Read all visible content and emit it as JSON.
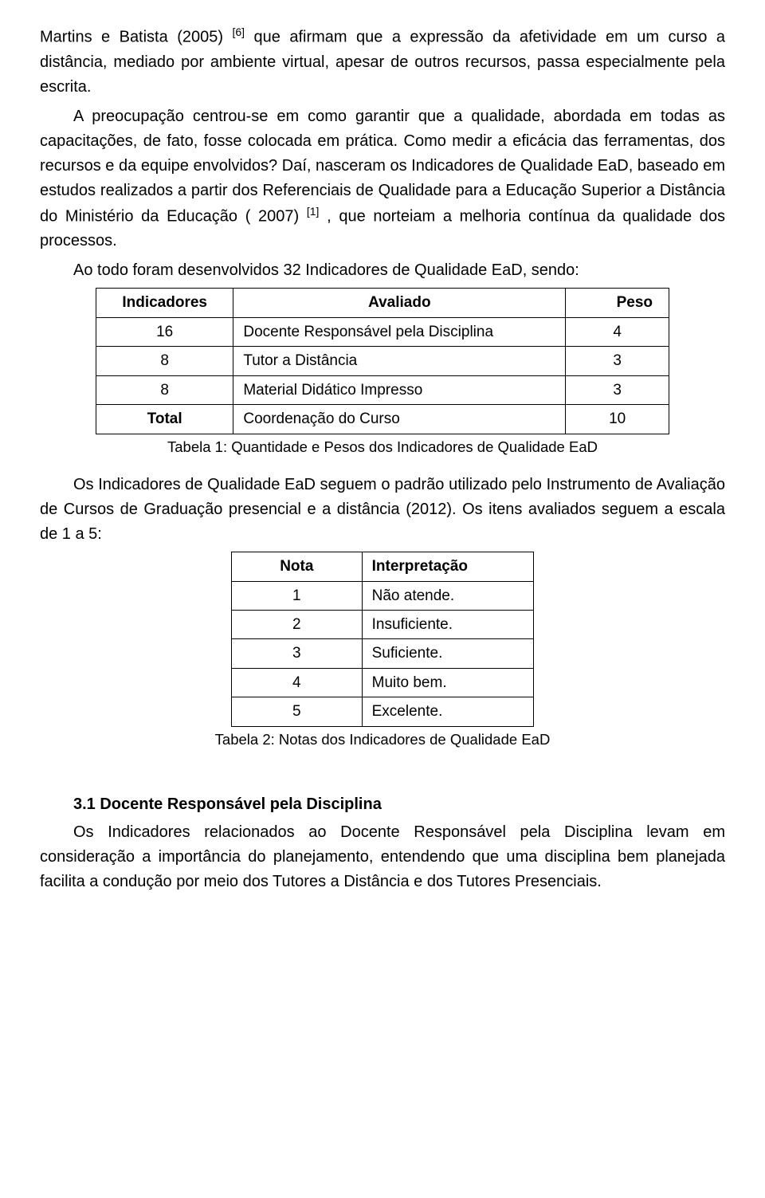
{
  "paragraphs": {
    "p1a": "Martins e Batista (2005) ",
    "p1sup": "[6]",
    "p1b": " que afirmam que a expressão da afetividade em um curso a distância, mediado por ambiente virtual, apesar de outros recursos, passa especialmente pela escrita.",
    "p2a": "A preocupação centrou-se em como garantir que a qualidade, abordada em todas as capacitações, de fato, fosse colocada em prática. Como medir a eficácia das ferramentas, dos recursos e da equipe envolvidos? Daí, nasceram os Indicadores de Qualidade EaD, baseado em estudos realizados a partir dos Referenciais de Qualidade para a Educação Superior a Distância do Ministério da Educação ( 2007) ",
    "p2sup": "[1]",
    "p2b": " , que norteiam a melhoria contínua da qualidade dos processos.",
    "p3": "Ao todo foram desenvolvidos 32 Indicadores de Qualidade EaD, sendo:",
    "p4": "Os Indicadores de Qualidade EaD seguem o padrão utilizado pelo Instrumento de Avaliação de Cursos de Graduação presencial e a distância (2012). Os itens avaliados seguem a escala de 1 a 5:",
    "p5": "Os Indicadores relacionados ao Docente Responsável pela Disciplina levam em consideração a importância do planejamento, entendendo que uma disciplina bem planejada facilita a condução por meio dos Tutores a Distância e dos Tutores Presenciais."
  },
  "table1": {
    "headers": [
      "Indicadores",
      "Avaliado",
      "Peso"
    ],
    "rows": [
      [
        "16",
        "Docente Responsável pela Disciplina",
        "4"
      ],
      [
        "8",
        "Tutor a Distância",
        "3"
      ],
      [
        "8",
        "Material Didático Impresso",
        "3"
      ],
      [
        "Total",
        "Coordenação do Curso",
        "10"
      ]
    ],
    "caption": "Tabela 1: Quantidade e Pesos dos Indicadores de Qualidade EaD"
  },
  "table2": {
    "headers": [
      "Nota",
      "Interpretação"
    ],
    "rows": [
      [
        "1",
        "Não atende."
      ],
      [
        "2",
        "Insuficiente."
      ],
      [
        "3",
        "Suficiente."
      ],
      [
        "4",
        "Muito bem."
      ],
      [
        "5",
        "Excelente."
      ]
    ],
    "caption": "Tabela 2: Notas dos Indicadores de Qualidade EaD"
  },
  "section_heading": "3.1 Docente Responsável pela Disciplina",
  "style": {
    "background_color": "#ffffff",
    "text_color": "#000000",
    "font_family": "Arial",
    "body_font_size_pt": 15,
    "line_height": 1.55,
    "table_border_color": "#000000"
  }
}
